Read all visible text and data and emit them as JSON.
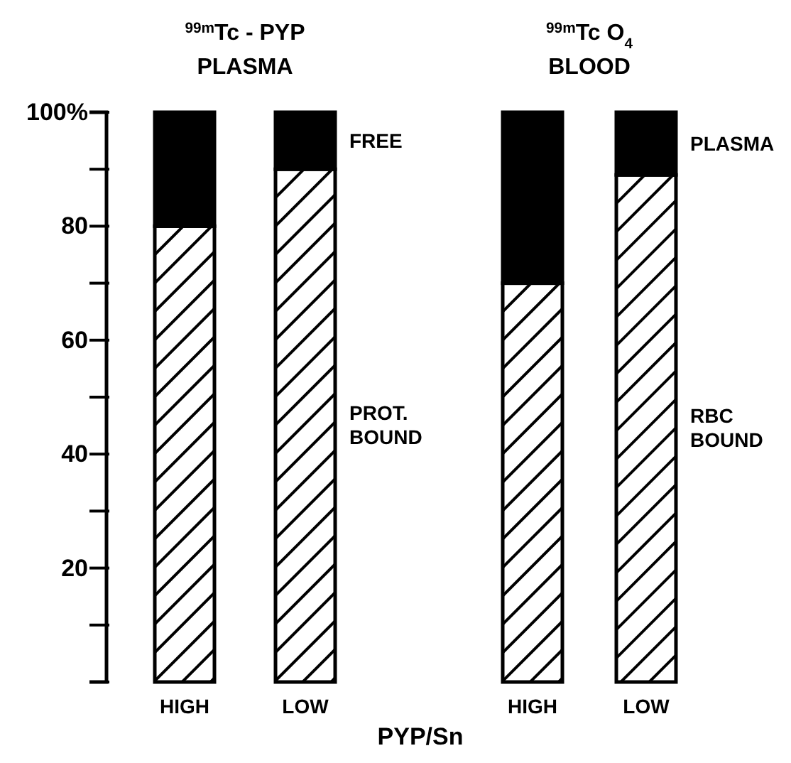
{
  "chart_data": [
    {
      "type": "bar",
      "title": "$^{99m}$Tc - PYP",
      "subtitle": "PLASMA",
      "xlabel": "PYP/Sn",
      "categories": [
        "HIGH",
        "LOW"
      ],
      "stacked": true,
      "ylim": [
        0,
        100
      ],
      "yticks": [
        {
          "value": 0,
          "label": null
        },
        {
          "value": 10,
          "label": null
        },
        20,
        {
          "value": 30,
          "label": null
        },
        40,
        {
          "value": 50,
          "label": null
        },
        60,
        {
          "value": 70,
          "label": null
        },
        80,
        {
          "value": 90,
          "label": null
        },
        {
          "value": 100,
          "label": "100%"
        }
      ],
      "grid": false,
      "legend": false,
      "series": [
        {
          "name": "PROT. BOUND",
          "color": "#ffffff",
          "values": [
            80,
            90
          ]
        },
        {
          "name": "FREE",
          "color": "#000000",
          "values": [
            20,
            10
          ]
        }
      ]
    },
    {
      "type": "bar",
      "title": "$^{99m}$Tc O$_{4}$",
      "subtitle": "BLOOD",
      "categories": [
        "HIGH",
        "LOW"
      ],
      "stacked": true,
      "ylim": [
        0,
        100
      ],
      "tick_labels": "x",
      "grid": false,
      "legend": false,
      "series": [
        {
          "name": "RBC BOUND",
          "color": "#ffffff",
          "values": [
            70,
            89
          ]
        },
        {
          "name": "PLASMA",
          "color": "#000000",
          "values": [
            30,
            11
          ]
        }
      ]
    }
  ]
}
